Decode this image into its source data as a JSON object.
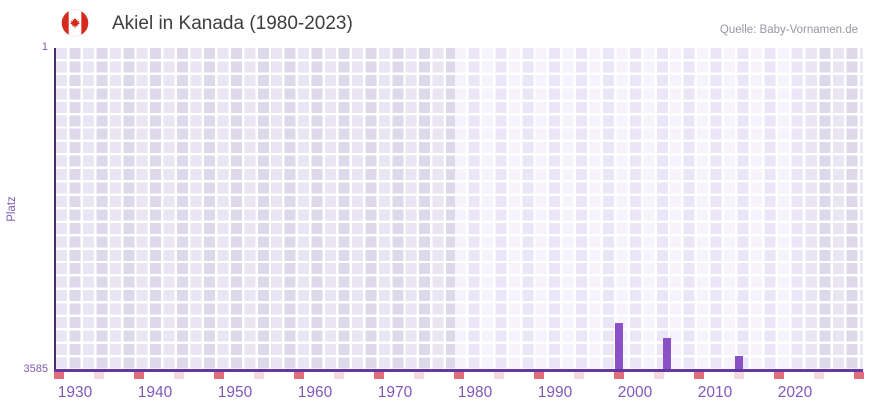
{
  "header": {
    "title": "Akiel in Kanada (1980-2023)",
    "flag_icon": "canada-flag-icon",
    "source": "Quelle: Baby-Vornamen.de"
  },
  "y_axis": {
    "title": "Platz",
    "top_label": "1",
    "bottom_label": "3585"
  },
  "chart_data": {
    "type": "bar",
    "title": "Akiel in Kanada (1980-2023)",
    "xlabel": "",
    "ylabel": "Platz",
    "y_axis": {
      "min": 1,
      "max": 3585,
      "inverted": true,
      "tick_labels": [
        "1",
        "3585"
      ]
    },
    "x_axis": {
      "implied_range": [
        1927.5,
        2028.5
      ],
      "ticks": [
        {
          "year": 1930,
          "label": "1930"
        },
        {
          "year": 1940,
          "label": "1940"
        },
        {
          "year": 1950,
          "label": "1950"
        },
        {
          "year": 1960,
          "label": "1960"
        },
        {
          "year": 1970,
          "label": "1970"
        },
        {
          "year": 1980,
          "label": "1980"
        },
        {
          "year": 1990,
          "label": "1990"
        },
        {
          "year": 2000,
          "label": "2000"
        },
        {
          "year": 2010,
          "label": "2010"
        },
        {
          "year": 2020,
          "label": "2020"
        }
      ]
    },
    "bars": [
      {
        "year": 1998,
        "rank": 3060
      },
      {
        "year": 2004,
        "rank": 3230
      },
      {
        "year": 2013,
        "rank": 3425
      }
    ],
    "no_rank_markers": [
      {
        "year": 1928,
        "tone": "strong"
      },
      {
        "year": 1933,
        "tone": "soft"
      },
      {
        "year": 1938,
        "tone": "strong"
      },
      {
        "year": 1943,
        "tone": "soft"
      },
      {
        "year": 1948,
        "tone": "strong"
      },
      {
        "year": 1953,
        "tone": "soft"
      },
      {
        "year": 1958,
        "tone": "strong"
      },
      {
        "year": 1963,
        "tone": "soft"
      },
      {
        "year": 1968,
        "tone": "strong"
      },
      {
        "year": 1973,
        "tone": "soft"
      },
      {
        "year": 1978,
        "tone": "strong"
      },
      {
        "year": 1983,
        "tone": "soft"
      },
      {
        "year": 1988,
        "tone": "strong"
      },
      {
        "year": 1993,
        "tone": "soft"
      },
      {
        "year": 1998,
        "tone": "strong"
      },
      {
        "year": 2003,
        "tone": "soft"
      },
      {
        "year": 2008,
        "tone": "strong"
      },
      {
        "year": 2013,
        "tone": "soft"
      },
      {
        "year": 2018,
        "tone": "strong"
      },
      {
        "year": 2023,
        "tone": "soft"
      },
      {
        "year": 2028,
        "tone": "strong"
      }
    ],
    "highlight_band_years": [
      1977.5,
      2021.4
    ],
    "grid": true,
    "legend": "none",
    "colors": {
      "bar": "#8b51c7",
      "marker_strong": "#e26d7e",
      "marker_soft": "#f4d9e1",
      "axis_line": "#63399f",
      "y_axis_line": "#463066",
      "label_purple": "#7d5bb0",
      "tick_purple": "#8258ba",
      "flag_red": "#d52b1e",
      "grid_dark_a": "#e9e5f2",
      "grid_dark_b": "#ded8eb",
      "grid_light_a": "#f6f3fc",
      "grid_light_b": "#ebe6f7"
    }
  }
}
